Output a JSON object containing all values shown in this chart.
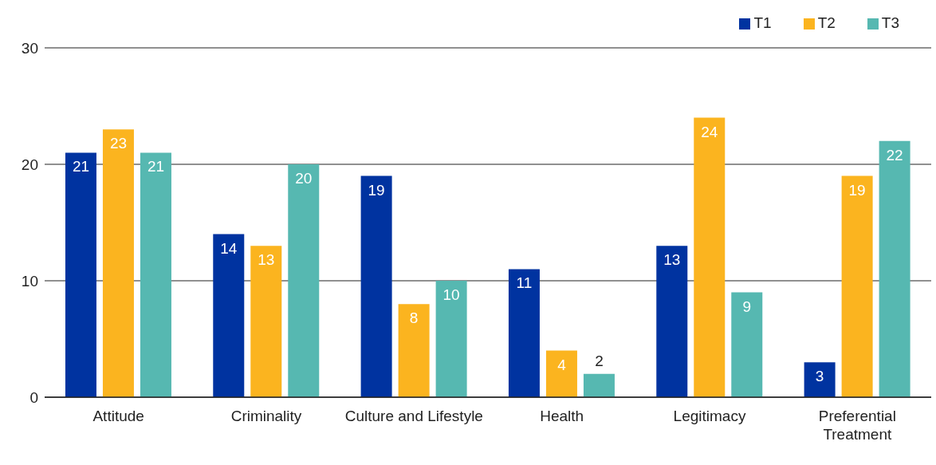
{
  "chart_data": {
    "type": "bar",
    "categories": [
      "Attitude",
      "Criminality",
      "Culture and Lifestyle",
      "Health",
      "Legitimacy",
      "Preferential Treatment"
    ],
    "series": [
      {
        "name": "T1",
        "color": "#0033a0",
        "values": [
          21,
          14,
          19,
          11,
          13,
          3
        ]
      },
      {
        "name": "T2",
        "color": "#fbb41f",
        "values": [
          23,
          13,
          8,
          4,
          24,
          19
        ]
      },
      {
        "name": "T3",
        "color": "#56b8b1",
        "values": [
          21,
          20,
          10,
          2,
          9,
          22
        ]
      }
    ],
    "ylim": [
      0,
      30
    ],
    "yticks": [
      0,
      10,
      20,
      30
    ],
    "grid": "y",
    "legend": "top right",
    "data_labels": true
  }
}
